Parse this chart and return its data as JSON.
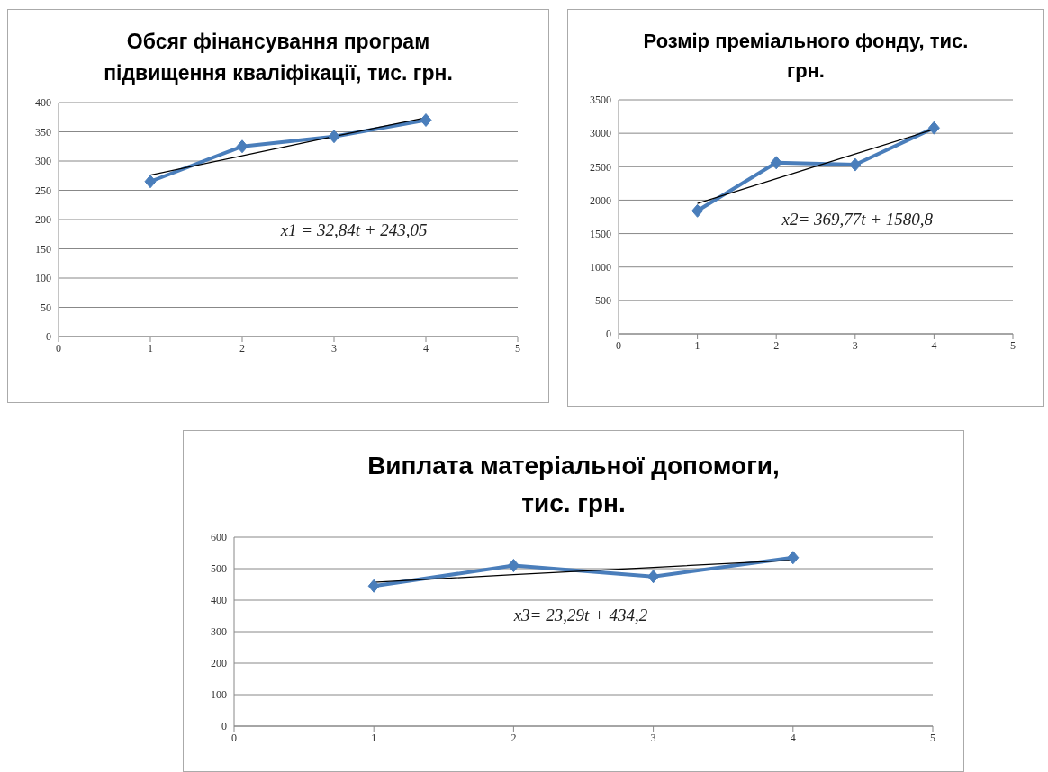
{
  "chart_data": [
    {
      "type": "line",
      "title": "Обсяг фінансування програм підвищення кваліфікації, тис. грн.",
      "x": [
        1,
        2,
        3,
        4
      ],
      "xlim": [
        0,
        5
      ],
      "xticks": [
        0,
        1,
        2,
        3,
        4,
        5
      ],
      "ylim": [
        0,
        400
      ],
      "yticks": [
        0,
        50,
        100,
        150,
        200,
        250,
        300,
        350,
        400
      ],
      "grid": "y",
      "annotations": [
        "x1 = 32,84t + 243,05"
      ],
      "series": [
        {
          "color": "#4a7ebb",
          "values": [
            265,
            325,
            342,
            370
          ],
          "marker": "diamond"
        },
        {
          "type": "line",
          "color": "#000000",
          "values": [
            276,
            309,
            342,
            374
          ],
          "marker": "none"
        }
      ]
    },
    {
      "type": "line",
      "title": "Розмір преміального фонду, тис. грн.",
      "x": [
        1,
        2,
        3,
        4
      ],
      "xlim": [
        0,
        5
      ],
      "xticks": [
        0,
        1,
        2,
        3,
        4,
        5
      ],
      "ylim": [
        0,
        3500
      ],
      "yticks": [
        0,
        500,
        1000,
        1500,
        2000,
        2500,
        3000,
        3500
      ],
      "grid": "y",
      "annotations": [
        "x2= 369,77t + 1580,8"
      ],
      "series": [
        {
          "color": "#4a7ebb",
          "values": [
            1840,
            2560,
            2530,
            3080
          ],
          "marker": "diamond"
        },
        {
          "type": "line",
          "color": "#000000",
          "values": [
            1950,
            2320,
            2690,
            3060
          ],
          "marker": "none"
        }
      ]
    },
    {
      "type": "line",
      "title": "Виплата матеріальної допомоги, тис. грн.",
      "x": [
        1,
        2,
        3,
        4
      ],
      "xlim": [
        0,
        5
      ],
      "xticks": [
        0,
        1,
        2,
        3,
        4,
        5
      ],
      "ylim": [
        0,
        600
      ],
      "yticks": [
        0,
        100,
        200,
        300,
        400,
        500,
        600
      ],
      "grid": "y",
      "annotations": [
        "x3= 23,29t + 434,2"
      ],
      "series": [
        {
          "color": "#4a7ebb",
          "values": [
            445,
            510,
            475,
            535
          ],
          "marker": "diamond"
        },
        {
          "type": "line",
          "color": "#000000",
          "values": [
            457,
            481,
            504,
            527
          ],
          "marker": "none"
        }
      ]
    }
  ]
}
